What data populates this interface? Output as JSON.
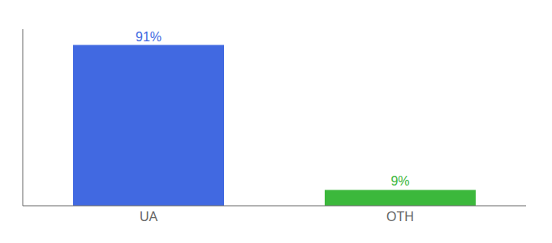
{
  "chart_data": {
    "type": "bar",
    "categories": [
      "UA",
      "OTH"
    ],
    "values": [
      91,
      9
    ],
    "value_labels": [
      "91%",
      "9%"
    ],
    "colors": [
      "#4169e1",
      "#3cb83c"
    ],
    "ylim": [
      0,
      100
    ],
    "data_labels": true,
    "tick_labels": "x"
  }
}
